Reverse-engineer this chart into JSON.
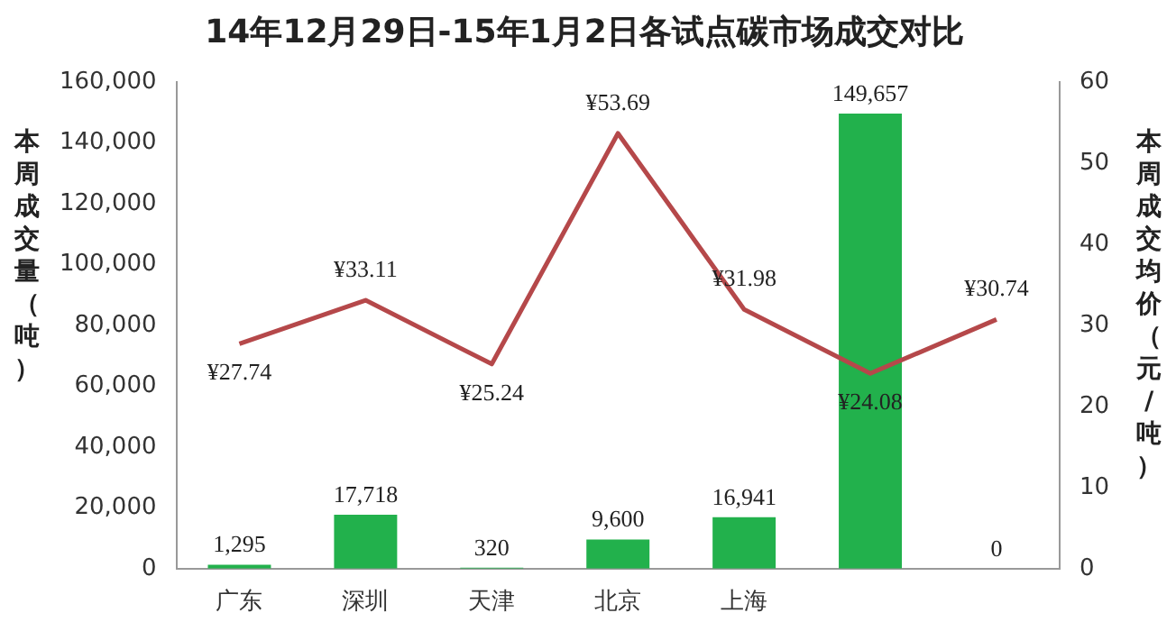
{
  "chart_data": {
    "type": "bar",
    "title": "14年12月29日-15年1月2日各试点碳市场成交对比",
    "ylabel": "本周成交量（吨）",
    "y2label": "本周成交均价（元/吨）",
    "categories": [
      "广东",
      "深圳",
      "天津",
      "北京",
      "上海",
      null,
      null
    ],
    "series": [
      {
        "color": "#22b14c",
        "values": [
          1295,
          17718,
          320,
          9600,
          16941,
          149657,
          0
        ],
        "value_labels": [
          "1,295",
          "17,718",
          "320",
          "9,600",
          "16,941",
          "149,657",
          "0"
        ]
      },
      {
        "type": "line",
        "axis": "y2",
        "color": "#b5484a",
        "values": [
          27.74,
          33.11,
          25.24,
          53.69,
          31.98,
          24.08,
          30.74
        ],
        "value_labels": [
          "¥27.74",
          "¥33.11",
          "¥25.24",
          "¥53.69",
          "¥31.98",
          "¥24.08",
          "¥30.74"
        ]
      }
    ],
    "ylim": [
      0,
      160000
    ],
    "yticks": [
      {
        "value": 0,
        "label": "0"
      },
      {
        "value": 20000,
        "label": "20,000"
      },
      {
        "value": 40000,
        "label": "40,000"
      },
      {
        "value": 60000,
        "label": "60,000"
      },
      {
        "value": 80000,
        "label": "80,000"
      },
      {
        "value": 100000,
        "label": "100,000"
      },
      {
        "value": 120000,
        "label": "120,000"
      },
      {
        "value": 140000,
        "label": "140,000"
      },
      {
        "value": 160000,
        "label": "160,000"
      }
    ],
    "y2lim": [
      0,
      60
    ],
    "y2ticks": [
      0,
      10,
      20,
      30,
      40,
      50,
      60
    ],
    "grid": false,
    "legend": false,
    "marker": "none",
    "line_style": "solid"
  }
}
